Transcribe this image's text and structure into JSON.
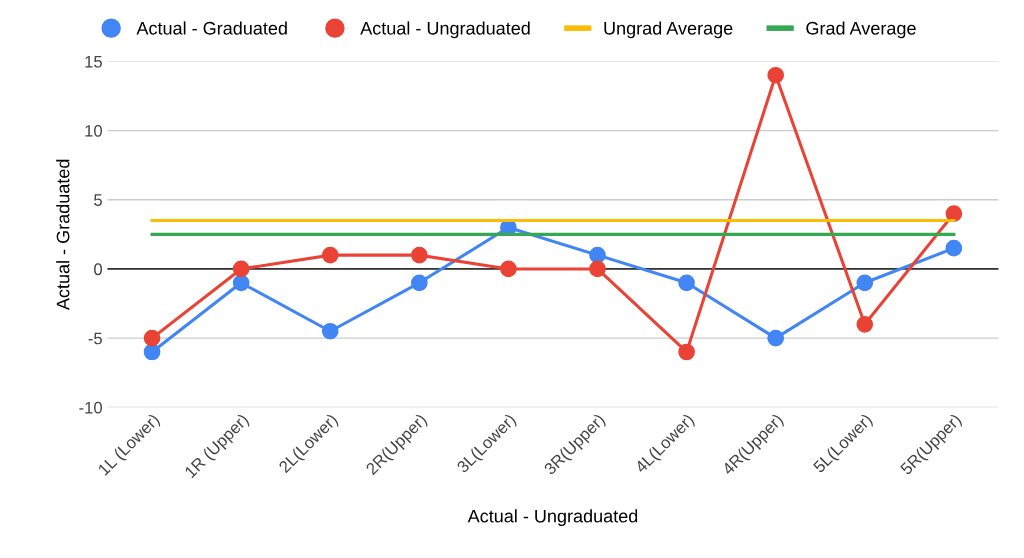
{
  "chart_data": {
    "type": "line",
    "categories": [
      "1L (Lower)",
      "1R (Upper)",
      "2L(Lower)",
      "2R(Upper)",
      "3L(Lower)",
      "3R(Upper)",
      "4L(Lower)",
      "4R(Upper)",
      "5L(Lower)",
      "5R(Upper)"
    ],
    "series": [
      {
        "name": "Actual - Graduated",
        "color": "#4285f4",
        "marker": "circle",
        "values": [
          -6,
          -1,
          -4.5,
          -1,
          3,
          1,
          -1,
          -5,
          -1,
          1.5
        ]
      },
      {
        "name": "Actual - Ungraduated",
        "color": "#ea4335",
        "marker": "circle",
        "values": [
          -5,
          0,
          1,
          1,
          0,
          0,
          -6,
          14,
          -4,
          4
        ]
      },
      {
        "name": "Ungrad Average",
        "color": "#fbbc04",
        "marker": "none",
        "values": [
          3.5,
          3.5,
          3.5,
          3.5,
          3.5,
          3.5,
          3.5,
          3.5,
          3.5,
          3.5
        ]
      },
      {
        "name": "Grad Average",
        "color": "#34a853",
        "marker": "none",
        "values": [
          2.5,
          2.5,
          2.5,
          2.5,
          2.5,
          2.5,
          2.5,
          2.5,
          2.5,
          2.5
        ]
      }
    ],
    "xlabel": "Actual - Ungraduated",
    "ylabel": "Actual - Graduated",
    "ylim": [
      -10,
      15
    ],
    "yticks": [
      -10,
      -5,
      0,
      5,
      10,
      15
    ],
    "ref_lines": [
      {
        "axis": "y",
        "value": 0,
        "color": "#333333"
      }
    ],
    "grid": "y",
    "legend": "top",
    "line_style": "solid"
  }
}
